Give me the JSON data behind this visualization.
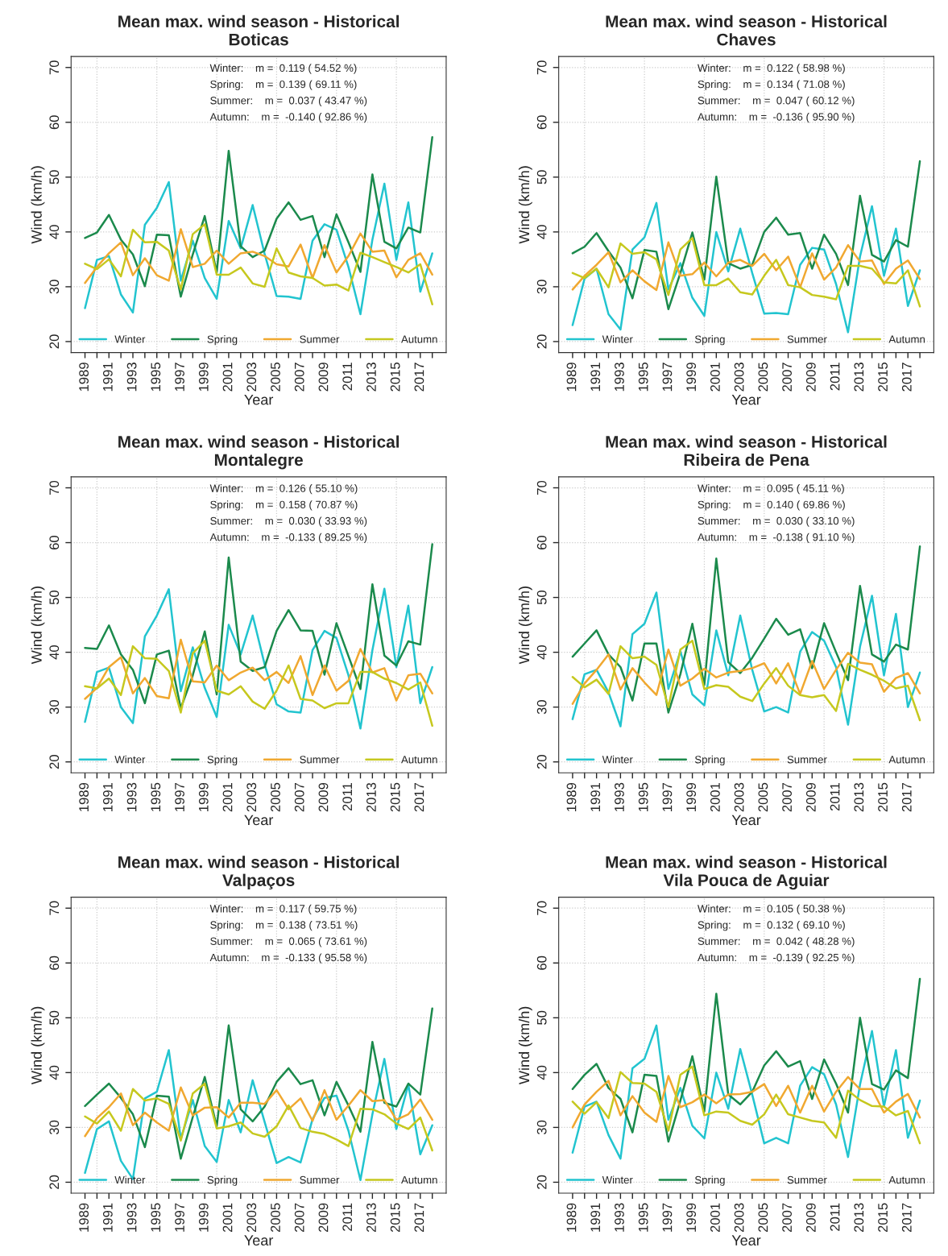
{
  "chart_data": [
    {
      "type": "line",
      "title": "Mean max. wind season - Historical\nBoticas",
      "xlabel": "Year",
      "ylabel": "Wind (km/h)",
      "x": [
        1989,
        1990,
        1991,
        1992,
        1993,
        1994,
        1995,
        1996,
        1997,
        1998,
        1999,
        2000,
        2001,
        2002,
        2003,
        2004,
        2005,
        2006,
        2007,
        2008,
        2009,
        2010,
        2011,
        2012,
        2013,
        2014,
        2015,
        2016,
        2017,
        2018
      ],
      "xlim": [
        1987.84,
        2019.16
      ],
      "xticks": [
        1989,
        {
          "value": 1990,
          "label": null
        },
        1991,
        {
          "value": 1992,
          "label": null
        },
        1993,
        {
          "value": 1994,
          "label": null
        },
        1995,
        {
          "value": 1996,
          "label": null
        },
        1997,
        {
          "value": 1998,
          "label": null
        },
        1999,
        {
          "value": 2000,
          "label": null
        },
        2001,
        {
          "value": 2002,
          "label": null
        },
        2003,
        {
          "value": 2004,
          "label": null
        },
        2005,
        {
          "value": 2006,
          "label": null
        },
        2007,
        {
          "value": 2008,
          "label": null
        },
        2009,
        {
          "value": 2010,
          "label": null
        },
        2011,
        {
          "value": 2012,
          "label": null
        },
        2013,
        {
          "value": 2014,
          "label": null
        },
        2015,
        {
          "value": 2016,
          "label": null
        },
        2017,
        {
          "value": 2018,
          "label": null
        }
      ],
      "ylim": [
        18,
        72
      ],
      "yticks": [
        20,
        30,
        40,
        50,
        60,
        70
      ],
      "grid": true,
      "legend": "bottom",
      "line_style": "solid",
      "annotations": [
        "Winter:    m =  0.119 ( 54.52 %)",
        "Spring:    m =  0.139 ( 69.11 %)",
        "Summer:    m =  0.037 ( 43.47 %)",
        "Autumn:    m =  -0.140 ( 92.86 %)"
      ],
      "series": [
        {
          "name": "Winter",
          "color": "#22c4cf",
          "values": [
            26.1,
            34.9,
            35.6,
            28.6,
            25.3,
            41.3,
            44.4,
            49.1,
            31.1,
            38.4,
            31.6,
            27.8,
            42,
            37,
            44.9,
            36,
            28.3,
            28.2,
            27.8,
            38.4,
            41.4,
            40.4,
            33.6,
            25,
            38.6,
            48.8,
            34.9,
            45.4,
            29.1,
            36.1
          ]
        },
        {
          "name": "Spring",
          "color": "#1b8a4c",
          "values": [
            38.9,
            39.9,
            43.1,
            38.6,
            35.9,
            30.1,
            39.5,
            39.4,
            28.2,
            35.9,
            42.9,
            32.6,
            54.8,
            37.4,
            35.4,
            36.6,
            42.4,
            45.4,
            42.2,
            42.9,
            35.4,
            43.2,
            38.1,
            32.7,
            50.5,
            38.2,
            37,
            40.8,
            39.9,
            57.3
          ]
        },
        {
          "name": "Summer",
          "color": "#f0a830",
          "values": [
            30.7,
            33.6,
            36.1,
            38.1,
            32.1,
            35.2,
            32.1,
            31.1,
            40.5,
            33.6,
            34.2,
            36.6,
            34.2,
            36.1,
            36.4,
            35.6,
            34.1,
            33.7,
            37.7,
            31.6,
            37.6,
            32.6,
            35.6,
            39.7,
            36.4,
            36.6,
            31.7,
            34.9,
            36.1,
            32.2
          ]
        },
        {
          "name": "Autumn",
          "color": "#c6c81e",
          "values": [
            34.2,
            33.2,
            35,
            31.9,
            40.4,
            38.1,
            38.2,
            36.6,
            29.5,
            39.6,
            41.4,
            32.2,
            32.2,
            33.5,
            30.6,
            30,
            37,
            32.6,
            31.9,
            31.6,
            30.2,
            30.4,
            29.3,
            36.2,
            35.4,
            34.5,
            33.6,
            32.6,
            34.1,
            26.8
          ]
        }
      ]
    },
    {
      "type": "line",
      "title": "Mean max. wind season - Historical\nChaves",
      "xlabel": "Year",
      "ylabel": "Wind (km/h)",
      "x": [
        1989,
        1990,
        1991,
        1992,
        1993,
        1994,
        1995,
        1996,
        1997,
        1998,
        1999,
        2000,
        2001,
        2002,
        2003,
        2004,
        2005,
        2006,
        2007,
        2008,
        2009,
        2010,
        2011,
        2012,
        2013,
        2014,
        2015,
        2016,
        2017,
        2018
      ],
      "xlim": [
        1987.84,
        2019.16
      ],
      "xticks": [
        1989,
        {
          "value": 1990,
          "label": null
        },
        1991,
        {
          "value": 1992,
          "label": null
        },
        1993,
        {
          "value": 1994,
          "label": null
        },
        1995,
        {
          "value": 1996,
          "label": null
        },
        1997,
        {
          "value": 1998,
          "label": null
        },
        1999,
        {
          "value": 2000,
          "label": null
        },
        2001,
        {
          "value": 2002,
          "label": null
        },
        2003,
        {
          "value": 2004,
          "label": null
        },
        2005,
        {
          "value": 2006,
          "label": null
        },
        2007,
        {
          "value": 2008,
          "label": null
        },
        2009,
        {
          "value": 2010,
          "label": null
        },
        2011,
        {
          "value": 2012,
          "label": null
        },
        2013,
        {
          "value": 2014,
          "label": null
        },
        2015,
        {
          "value": 2016,
          "label": null
        },
        2017,
        {
          "value": 2018,
          "label": null
        }
      ],
      "ylim": [
        18,
        72
      ],
      "yticks": [
        20,
        30,
        40,
        50,
        60,
        70
      ],
      "grid": true,
      "legend": "bottom",
      "line_style": "solid",
      "annotations": [
        "Winter:    m =  0.122 ( 58.98 %)",
        "Spring:    m =  0.134 ( 71.08 %)",
        "Summer:    m =  0.047 ( 60.12 %)",
        "Autumn:    m =  -0.136 ( 95.90 %)"
      ],
      "series": [
        {
          "name": "Winter",
          "color": "#22c4cf",
          "values": [
            23,
            31.5,
            33.3,
            25,
            22.2,
            36.8,
            39,
            45.3,
            29.5,
            34.3,
            28,
            24.7,
            40,
            32.8,
            40.6,
            32.5,
            25.1,
            25.2,
            25,
            34,
            37.1,
            36.8,
            30.5,
            21.7,
            35.5,
            44.7,
            32,
            40.6,
            26.5,
            33
          ]
        },
        {
          "name": "Spring",
          "color": "#1b8a4c",
          "values": [
            36.1,
            37.3,
            39.8,
            36.5,
            33.5,
            27.9,
            36.7,
            36.4,
            25.9,
            32.5,
            39.9,
            31.3,
            50.1,
            34.3,
            33.3,
            34,
            40,
            42.6,
            39.5,
            39.8,
            33.3,
            39.5,
            36,
            30.3,
            46.6,
            35.8,
            34.6,
            38.5,
            37.3,
            52.9
          ]
        },
        {
          "name": "Summer",
          "color": "#f0a830",
          "values": [
            29.5,
            32,
            34,
            36.3,
            30.8,
            33,
            31,
            29.4,
            38.1,
            32,
            32.3,
            34.4,
            31.9,
            34.4,
            34.9,
            33.8,
            36,
            33,
            35.5,
            29.9,
            36.1,
            31.3,
            33.5,
            37.6,
            34.6,
            34.8,
            30.5,
            33.3,
            34.8,
            31.4
          ]
        },
        {
          "name": "Autumn",
          "color": "#c6c81e",
          "values": [
            32.5,
            31.6,
            33.3,
            29.9,
            37.9,
            36,
            36.3,
            35,
            28.5,
            36.8,
            38.9,
            30.3,
            30.3,
            31.5,
            29,
            28.6,
            32,
            34.9,
            30.3,
            29.9,
            28.5,
            28.2,
            27.7,
            33.8,
            33.8,
            33.3,
            30.8,
            30.6,
            33,
            26.4
          ]
        }
      ]
    },
    {
      "type": "line",
      "title": "Mean max. wind season - Historical\nMontalegre",
      "xlabel": "Year",
      "ylabel": "Wind (km/h)",
      "x": [
        1989,
        1990,
        1991,
        1992,
        1993,
        1994,
        1995,
        1996,
        1997,
        1998,
        1999,
        2000,
        2001,
        2002,
        2003,
        2004,
        2005,
        2006,
        2007,
        2008,
        2009,
        2010,
        2011,
        2012,
        2013,
        2014,
        2015,
        2016,
        2017,
        2018
      ],
      "xlim": [
        1987.84,
        2019.16
      ],
      "xticks": [
        1989,
        {
          "value": 1990,
          "label": null
        },
        1991,
        {
          "value": 1992,
          "label": null
        },
        1993,
        {
          "value": 1994,
          "label": null
        },
        1995,
        {
          "value": 1996,
          "label": null
        },
        1997,
        {
          "value": 1998,
          "label": null
        },
        1999,
        {
          "value": 2000,
          "label": null
        },
        2001,
        {
          "value": 2002,
          "label": null
        },
        2003,
        {
          "value": 2004,
          "label": null
        },
        2005,
        {
          "value": 2006,
          "label": null
        },
        2007,
        {
          "value": 2008,
          "label": null
        },
        2009,
        {
          "value": 2010,
          "label": null
        },
        2011,
        {
          "value": 2012,
          "label": null
        },
        2013,
        {
          "value": 2014,
          "label": null
        },
        2015,
        {
          "value": 2016,
          "label": null
        },
        2017,
        {
          "value": 2018,
          "label": null
        }
      ],
      "ylim": [
        18,
        72
      ],
      "yticks": [
        20,
        30,
        40,
        50,
        60,
        70
      ],
      "grid": true,
      "legend": "bottom",
      "line_style": "solid",
      "annotations": [
        "Winter:    m =  0.126 ( 55.10 %)",
        "Spring:    m =  0.158 ( 70.87 %)",
        "Summer:    m =  0.030 ( 33.93 %)",
        "Autumn:    m =  -0.133 ( 89.25 %)"
      ],
      "series": [
        {
          "name": "Winter",
          "color": "#22c4cf",
          "values": [
            27.3,
            36.4,
            37.2,
            30,
            27.1,
            42.9,
            46.7,
            51.5,
            32.9,
            40.9,
            33.5,
            28.2,
            45,
            39.6,
            46.7,
            37.8,
            30.5,
            29.2,
            29,
            40.4,
            43.9,
            42.6,
            35.8,
            26.1,
            40.4,
            51.6,
            37.3,
            48.5,
            30.7,
            37.3
          ]
        },
        {
          "name": "Spring",
          "color": "#1b8a4c",
          "values": [
            40.8,
            40.6,
            44.9,
            39.6,
            36.8,
            30.7,
            39.6,
            40.3,
            29.8,
            35.8,
            43.8,
            32.3,
            57.3,
            38.3,
            36.6,
            37.3,
            43.9,
            47.7,
            44,
            43.9,
            35.9,
            45.3,
            39.3,
            33.3,
            52.4,
            39.4,
            37.6,
            42,
            41.4,
            59.7
          ]
        },
        {
          "name": "Summer",
          "color": "#f0a830",
          "values": [
            31.5,
            33.5,
            37.3,
            39.1,
            32.5,
            35.3,
            32,
            31.6,
            42.3,
            34.7,
            34.5,
            37.6,
            34.9,
            36.3,
            37.2,
            34.9,
            36.4,
            34.4,
            39.3,
            32.2,
            37.6,
            33,
            34.8,
            40.6,
            36.3,
            37.1,
            31.2,
            35.8,
            36.1,
            32.5
          ]
        },
        {
          "name": "Autumn",
          "color": "#c6c81e",
          "values": [
            33.8,
            33.4,
            35.2,
            32.2,
            41.1,
            38.9,
            38.8,
            36.6,
            29,
            39.8,
            42.1,
            33,
            32.3,
            33.8,
            31,
            29.7,
            33,
            37.6,
            31.5,
            31.2,
            29.8,
            30.7,
            30.7,
            36.4,
            36.4,
            35.2,
            34.4,
            33.2,
            34.5,
            26.6
          ]
        }
      ]
    },
    {
      "type": "line",
      "title": "Mean max. wind season - Historical\nRibeira de Pena",
      "xlabel": "Year",
      "ylabel": "Wind (km/h)",
      "x": [
        1989,
        1990,
        1991,
        1992,
        1993,
        1994,
        1995,
        1996,
        1997,
        1998,
        1999,
        2000,
        2001,
        2002,
        2003,
        2004,
        2005,
        2006,
        2007,
        2008,
        2009,
        2010,
        2011,
        2012,
        2013,
        2014,
        2015,
        2016,
        2017,
        2018
      ],
      "xlim": [
        1987.84,
        2019.16
      ],
      "xticks": [
        1989,
        {
          "value": 1990,
          "label": null
        },
        1991,
        {
          "value": 1992,
          "label": null
        },
        1993,
        {
          "value": 1994,
          "label": null
        },
        1995,
        {
          "value": 1996,
          "label": null
        },
        1997,
        {
          "value": 1998,
          "label": null
        },
        1999,
        {
          "value": 2000,
          "label": null
        },
        2001,
        {
          "value": 2002,
          "label": null
        },
        2003,
        {
          "value": 2004,
          "label": null
        },
        2005,
        {
          "value": 2006,
          "label": null
        },
        2007,
        {
          "value": 2008,
          "label": null
        },
        2009,
        {
          "value": 2010,
          "label": null
        },
        2011,
        {
          "value": 2012,
          "label": null
        },
        2013,
        {
          "value": 2014,
          "label": null
        },
        2015,
        {
          "value": 2016,
          "label": null
        },
        2017,
        {
          "value": 2018,
          "label": null
        }
      ],
      "ylim": [
        18,
        72
      ],
      "yticks": [
        20,
        30,
        40,
        50,
        60,
        70
      ],
      "grid": true,
      "legend": "bottom",
      "line_style": "solid",
      "annotations": [
        "Winter:    m =  0.095 ( 45.11 %)",
        "Spring:    m =  0.140 ( 69.86 %)",
        "Summer:    m =  0.030 ( 33.10 %)",
        "Autumn:    m =  -0.138 ( 91.10 %)"
      ],
      "series": [
        {
          "name": "Winter",
          "color": "#22c4cf",
          "values": [
            27.8,
            36,
            36.8,
            32.7,
            26.5,
            43.3,
            45.2,
            50.9,
            33.3,
            40.2,
            32.3,
            30.3,
            44,
            35.8,
            46.7,
            36.8,
            29.2,
            30,
            29,
            40.1,
            43.7,
            42.1,
            37.3,
            26.8,
            41,
            50.3,
            35.8,
            47,
            30,
            36.3
          ]
        },
        {
          "name": "Spring",
          "color": "#1b8a4c",
          "values": [
            39.2,
            41.6,
            44,
            39.6,
            37.3,
            31.2,
            41.6,
            41.6,
            29,
            36,
            45.2,
            34,
            57.1,
            38.2,
            36.2,
            39,
            42.5,
            46.1,
            43.2,
            44.2,
            37.1,
            45.3,
            40,
            34.9,
            52.1,
            39.6,
            38.3,
            41.4,
            40.5,
            59.3
          ]
        },
        {
          "name": "Summer",
          "color": "#f0a830",
          "values": [
            30.6,
            34.3,
            36.8,
            39.6,
            33.2,
            37.1,
            34.5,
            32.2,
            40.5,
            33.9,
            35.2,
            37,
            35.4,
            36.3,
            36.6,
            37.1,
            38,
            34.3,
            38,
            32.4,
            38.4,
            33.3,
            36.8,
            39.9,
            38.1,
            37.8,
            32.8,
            35.3,
            36.2,
            32.5
          ]
        },
        {
          "name": "Autumn",
          "color": "#c6c81e",
          "values": [
            35.5,
            33.6,
            35,
            32.4,
            41.1,
            38.9,
            39.2,
            37.7,
            30,
            40.5,
            42.1,
            33.3,
            34,
            33.7,
            31.9,
            31.1,
            34.3,
            37.1,
            33.9,
            32.2,
            31.8,
            32.2,
            29.3,
            37.9,
            36.8,
            35.9,
            34.8,
            33.4,
            33.9,
            27.6
          ]
        }
      ]
    },
    {
      "type": "line",
      "title": "Mean max. wind season - Historical\nValpaços",
      "xlabel": "Year",
      "ylabel": "Wind (km/h)",
      "x": [
        1989,
        1990,
        1991,
        1992,
        1993,
        1994,
        1995,
        1996,
        1997,
        1998,
        1999,
        2000,
        2001,
        2002,
        2003,
        2004,
        2005,
        2006,
        2007,
        2008,
        2009,
        2010,
        2011,
        2012,
        2013,
        2014,
        2015,
        2016,
        2017,
        2018
      ],
      "xlim": [
        1987.84,
        2019.16
      ],
      "xticks": [
        1989,
        {
          "value": 1990,
          "label": null
        },
        1991,
        {
          "value": 1992,
          "label": null
        },
        1993,
        {
          "value": 1994,
          "label": null
        },
        1995,
        {
          "value": 1996,
          "label": null
        },
        1997,
        {
          "value": 1998,
          "label": null
        },
        1999,
        {
          "value": 2000,
          "label": null
        },
        2001,
        {
          "value": 2002,
          "label": null
        },
        2003,
        {
          "value": 2004,
          "label": null
        },
        2005,
        {
          "value": 2006,
          "label": null
        },
        2007,
        {
          "value": 2008,
          "label": null
        },
        2009,
        {
          "value": 2010,
          "label": null
        },
        2011,
        {
          "value": 2012,
          "label": null
        },
        2013,
        {
          "value": 2014,
          "label": null
        },
        2015,
        {
          "value": 2016,
          "label": null
        },
        2017,
        {
          "value": 2018,
          "label": null
        }
      ],
      "ylim": [
        18,
        72
      ],
      "yticks": [
        20,
        30,
        40,
        50,
        60,
        70
      ],
      "grid": true,
      "legend": "bottom",
      "line_style": "solid",
      "annotations": [
        "Winter:    m =  0.117 ( 59.75 %)",
        "Spring:    m =  0.138 ( 73.51 %)",
        "Summer:    m =  0.065 ( 73.61 %)",
        "Autumn:    m =  -0.133 ( 95.58 %)"
      ],
      "series": [
        {
          "name": "Winter",
          "color": "#22c4cf",
          "values": [
            21.7,
            29.7,
            31.1,
            23.9,
            20.6,
            35.3,
            36.5,
            44.1,
            27.9,
            35,
            26.6,
            23.7,
            35,
            29.1,
            38.6,
            31,
            23.5,
            24.6,
            23.6,
            31.5,
            35.4,
            35.8,
            29.4,
            20.4,
            32.4,
            42.5,
            29.7,
            37.8,
            25.1,
            30.4
          ]
        },
        {
          "name": "Spring",
          "color": "#1b8a4c",
          "values": [
            33.9,
            36,
            38,
            35.4,
            32.4,
            26.4,
            35.8,
            35.6,
            24.3,
            31.9,
            39.2,
            30.2,
            48.6,
            33.3,
            31.1,
            33.8,
            38.3,
            40.8,
            37.9,
            38.6,
            32.2,
            38.3,
            34,
            29.2,
            45.6,
            34.5,
            33.8,
            38,
            36,
            51.7
          ]
        },
        {
          "name": "Summer",
          "color": "#f0a830",
          "values": [
            28.4,
            31.7,
            33.7,
            36.2,
            30.4,
            32.7,
            30.9,
            29.4,
            37.3,
            32.2,
            33.6,
            33.7,
            31.8,
            34.5,
            34.5,
            34.3,
            36.8,
            33.3,
            35.3,
            31.2,
            36.8,
            31.4,
            34,
            36.8,
            34.8,
            35,
            31.4,
            32.4,
            35.1,
            31.4
          ]
        },
        {
          "name": "Autumn",
          "color": "#c6c81e",
          "values": [
            32,
            30.7,
            32.9,
            29.4,
            37,
            34.9,
            35.3,
            34.3,
            27.6,
            36.2,
            38,
            29.8,
            30.2,
            30.9,
            28.9,
            28.3,
            30.2,
            34,
            29.9,
            29.2,
            28.8,
            27.8,
            26.6,
            33.4,
            33.3,
            32.4,
            30.7,
            29.7,
            31.8,
            25.8
          ]
        }
      ]
    },
    {
      "type": "line",
      "title": "Mean max. wind season - Historical\nVila Pouca de Aguiar",
      "xlabel": "Year",
      "ylabel": "Wind (km/h)",
      "x": [
        1989,
        1990,
        1991,
        1992,
        1993,
        1994,
        1995,
        1996,
        1997,
        1998,
        1999,
        2000,
        2001,
        2002,
        2003,
        2004,
        2005,
        2006,
        2007,
        2008,
        2009,
        2010,
        2011,
        2012,
        2013,
        2014,
        2015,
        2016,
        2017,
        2018
      ],
      "xlim": [
        1987.84,
        2019.16
      ],
      "xticks": [
        1989,
        {
          "value": 1990,
          "label": null
        },
        1991,
        {
          "value": 1992,
          "label": null
        },
        1993,
        {
          "value": 1994,
          "label": null
        },
        1995,
        {
          "value": 1996,
          "label": null
        },
        1997,
        {
          "value": 1998,
          "label": null
        },
        1999,
        {
          "value": 2000,
          "label": null
        },
        2001,
        {
          "value": 2002,
          "label": null
        },
        2003,
        {
          "value": 2004,
          "label": null
        },
        2005,
        {
          "value": 2006,
          "label": null
        },
        2007,
        {
          "value": 2008,
          "label": null
        },
        2009,
        {
          "value": 2010,
          "label": null
        },
        2011,
        {
          "value": 2012,
          "label": null
        },
        2013,
        {
          "value": 2014,
          "label": null
        },
        2015,
        {
          "value": 2016,
          "label": null
        },
        2017,
        {
          "value": 2018,
          "label": null
        }
      ],
      "ylim": [
        18,
        72
      ],
      "yticks": [
        20,
        30,
        40,
        50,
        60,
        70
      ],
      "grid": true,
      "legend": "bottom",
      "line_style": "solid",
      "annotations": [
        "Winter:    m =  0.105 ( 50.38 %)",
        "Spring:    m =  0.132 ( 69.10 %)",
        "Summer:    m =  0.042 ( 48.28 %)",
        "Autumn:    m =  -0.139 ( 92.25 %)"
      ],
      "series": [
        {
          "name": "Winter",
          "color": "#22c4cf",
          "values": [
            25.4,
            33.8,
            34.7,
            28.6,
            24.3,
            40.8,
            42.5,
            48.6,
            31.4,
            37.2,
            30.3,
            28,
            40,
            33.4,
            44.3,
            36,
            27.1,
            28.1,
            27.1,
            37.6,
            41,
            39.7,
            34.2,
            24.6,
            37.8,
            47.6,
            33.8,
            44.1,
            28.1,
            34.9
          ]
        },
        {
          "name": "Spring",
          "color": "#1b8a4c",
          "values": [
            37,
            39.6,
            41.6,
            37.2,
            35.2,
            29.1,
            39.6,
            39.4,
            27.4,
            34.9,
            43,
            32.9,
            54.4,
            36,
            34.2,
            36.5,
            41.3,
            43.9,
            41.1,
            42.1,
            35.2,
            42.4,
            38,
            32.7,
            50,
            37.9,
            36.9,
            40.4,
            39,
            57.1
          ]
        },
        {
          "name": "Summer",
          "color": "#f0a830",
          "values": [
            30,
            34.2,
            36.5,
            38.5,
            32.2,
            35.7,
            32.7,
            31,
            39.4,
            33.7,
            34.6,
            36,
            34.4,
            36,
            36.1,
            36.5,
            37.9,
            33.9,
            37.6,
            32.7,
            37.6,
            32.9,
            36.5,
            39.2,
            37,
            37,
            32.7,
            34.7,
            36.1,
            31.8
          ]
        },
        {
          "name": "Autumn",
          "color": "#c6c81e",
          "values": [
            34.7,
            32.5,
            34.6,
            31.7,
            40.1,
            38.1,
            38,
            36.5,
            29.4,
            39.6,
            41.1,
            32.2,
            32.9,
            32.7,
            31.2,
            30.5,
            32.4,
            36,
            32.4,
            31.8,
            31.2,
            30.9,
            28.1,
            36.7,
            35,
            33.9,
            33.8,
            32.2,
            33,
            27.1
          ]
        }
      ]
    }
  ]
}
